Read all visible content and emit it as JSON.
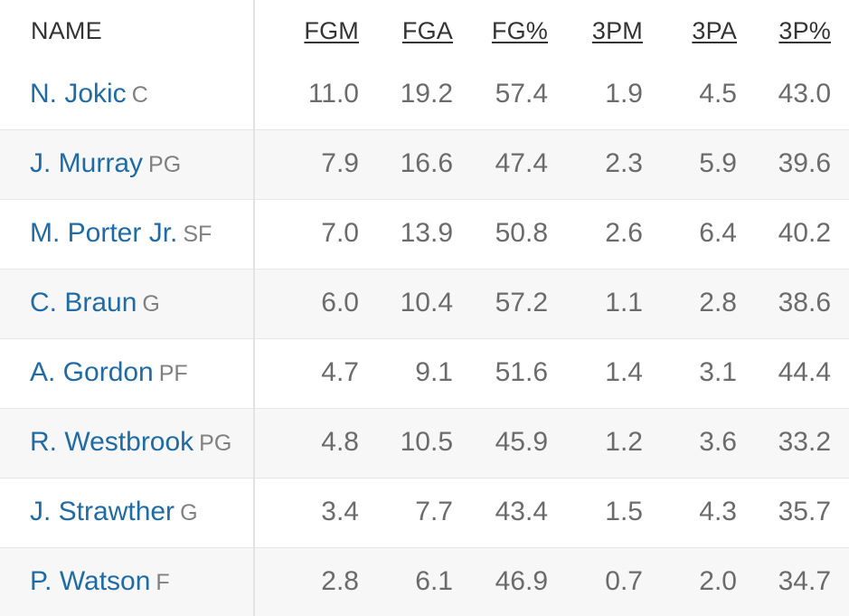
{
  "headers": {
    "name": "NAME",
    "fgm": "FGM",
    "fga": "FGA",
    "fgp": "FG%",
    "tpm": "3PM",
    "tpa": "3PA",
    "tpp": "3P%"
  },
  "rows": [
    {
      "name": "N. Jokic",
      "pos": "C",
      "fgm": "11.0",
      "fga": "19.2",
      "fgp": "57.4",
      "tpm": "1.9",
      "tpa": "4.5",
      "tpp": "43.0"
    },
    {
      "name": "J. Murray",
      "pos": "PG",
      "fgm": "7.9",
      "fga": "16.6",
      "fgp": "47.4",
      "tpm": "2.3",
      "tpa": "5.9",
      "tpp": "39.6"
    },
    {
      "name": "M. Porter Jr.",
      "pos": "SF",
      "fgm": "7.0",
      "fga": "13.9",
      "fgp": "50.8",
      "tpm": "2.6",
      "tpa": "6.4",
      "tpp": "40.2"
    },
    {
      "name": "C. Braun",
      "pos": "G",
      "fgm": "6.0",
      "fga": "10.4",
      "fgp": "57.2",
      "tpm": "1.1",
      "tpa": "2.8",
      "tpp": "38.6"
    },
    {
      "name": "A. Gordon",
      "pos": "PF",
      "fgm": "4.7",
      "fga": "9.1",
      "fgp": "51.6",
      "tpm": "1.4",
      "tpa": "3.1",
      "tpp": "44.4"
    },
    {
      "name": "R. Westbrook",
      "pos": "PG",
      "fgm": "4.8",
      "fga": "10.5",
      "fgp": "45.9",
      "tpm": "1.2",
      "tpa": "3.6",
      "tpp": "33.2"
    },
    {
      "name": "J. Strawther",
      "pos": "G",
      "fgm": "3.4",
      "fga": "7.7",
      "fgp": "43.4",
      "tpm": "1.5",
      "tpa": "4.3",
      "tpp": "35.7"
    },
    {
      "name": "P. Watson",
      "pos": "F",
      "fgm": "2.8",
      "fga": "6.1",
      "fgp": "46.9",
      "tpm": "0.7",
      "tpa": "2.0",
      "tpp": "34.7"
    }
  ]
}
